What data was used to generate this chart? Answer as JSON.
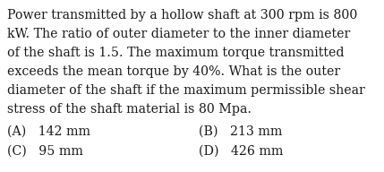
{
  "background_color": "#ffffff",
  "text_color": "#1a1a1a",
  "question_lines": [
    "Power transmitted by a hollow shaft at 300 rpm is 800",
    "kW. The ratio of outer diameter to the inner diameter",
    "of the shaft is 1.5. The maximum torque transmitted",
    "exceeds the mean torque by 40%. What is the outer",
    "diameter of the shaft if the maximum permissible shear",
    "stress of the shaft material is 80 Mpa."
  ],
  "options": [
    {
      "label": "(A)",
      "value": "142 mm",
      "col": 0
    },
    {
      "label": "(B)",
      "value": "213 mm",
      "col": 1
    },
    {
      "label": "(C)",
      "value": "95 mm",
      "col": 0
    },
    {
      "label": "(D)",
      "value": "426 mm",
      "col": 1
    }
  ],
  "font_family": "DejaVu Serif",
  "question_fontsize": 10.2,
  "option_fontsize": 10.2,
  "fig_width": 4.29,
  "fig_height": 1.92,
  "dpi": 100
}
